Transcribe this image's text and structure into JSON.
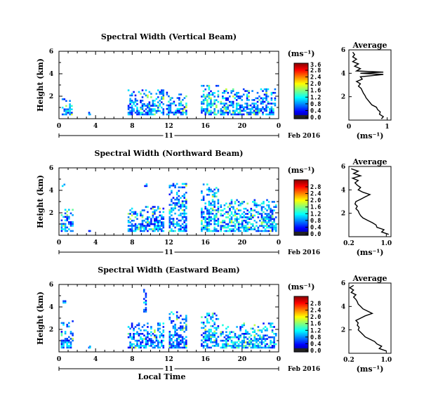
{
  "chart_data": [
    {
      "type": "heatmap",
      "title": "Spectral Width (Vertical Beam)",
      "ylabel": "Height (km)",
      "xlabel": "",
      "x_ticks": [
        "0",
        "4",
        "8",
        "12",
        "16",
        "20",
        "0"
      ],
      "y_ticks": [
        "2",
        "4",
        "6"
      ],
      "xlim": [
        0,
        24
      ],
      "ylim": [
        0,
        6
      ],
      "date_day": "11",
      "date_label": "Feb 2016",
      "colorbar": {
        "label": "(ms⁻¹)",
        "ticks": [
          "0.0",
          "0.4",
          "0.8",
          "1.2",
          "1.6",
          "2.0",
          "2.4",
          "2.8"
        ],
        "top_label": "3.6",
        "range": [
          0,
          3.6
        ]
      },
      "clusters": [
        {
          "t": [
            0.3,
            1.5
          ],
          "h": [
            0.3,
            1.8
          ],
          "level": 0.3
        },
        {
          "t": [
            3.2,
            3.4
          ],
          "h": [
            0.3,
            0.6
          ],
          "level": 0.3
        },
        {
          "t": [
            7.5,
            11.5
          ],
          "h": [
            0.3,
            2.6
          ],
          "level": 0.3
        },
        {
          "t": [
            11.7,
            14.0
          ],
          "h": [
            0.3,
            2.4
          ],
          "level": 0.3
        },
        {
          "t": [
            15.5,
            17.5
          ],
          "h": [
            0.3,
            3.0
          ],
          "level": 0.35
        },
        {
          "t": [
            17.6,
            23.7
          ],
          "h": [
            0.3,
            2.7
          ],
          "level": 0.3
        }
      ],
      "profile": {
        "title": "Average",
        "xlabel": "(ms⁻¹)",
        "x_ticks": [
          "0",
          "1"
        ],
        "xlim": [
          0,
          1.1
        ],
        "y_ticks": [
          "2",
          "4",
          "6"
        ],
        "ylim": [
          0,
          6
        ],
        "points": [
          [
            0.85,
            0.1
          ],
          [
            0.9,
            0.3
          ],
          [
            0.8,
            0.5
          ],
          [
            0.82,
            0.7
          ],
          [
            0.75,
            0.9
          ],
          [
            0.72,
            1.1
          ],
          [
            0.6,
            1.3
          ],
          [
            0.55,
            1.5
          ],
          [
            0.5,
            1.7
          ],
          [
            0.45,
            1.9
          ],
          [
            0.42,
            2.1
          ],
          [
            0.38,
            2.3
          ],
          [
            0.35,
            2.5
          ],
          [
            0.32,
            2.7
          ],
          [
            0.25,
            2.9
          ],
          [
            0.3,
            3.1
          ],
          [
            0.2,
            3.3
          ],
          [
            0.35,
            3.5
          ],
          [
            0.3,
            3.7
          ],
          [
            0.6,
            3.8
          ],
          [
            0.9,
            3.9
          ],
          [
            0.3,
            4.0
          ],
          [
            0.9,
            4.1
          ],
          [
            0.2,
            4.2
          ],
          [
            0.3,
            4.4
          ],
          [
            0.15,
            4.6
          ],
          [
            0.25,
            4.8
          ],
          [
            0.1,
            5.0
          ],
          [
            0.2,
            5.2
          ],
          [
            0.1,
            5.4
          ],
          [
            0.15,
            5.6
          ],
          [
            0.1,
            5.8
          ]
        ]
      }
    },
    {
      "type": "heatmap",
      "title": "Spectral Width (Northward Beam)",
      "ylabel": "Height (km)",
      "xlabel": "",
      "x_ticks": [
        "0",
        "4",
        "8",
        "12",
        "16",
        "20",
        "0"
      ],
      "y_ticks": [
        "2",
        "4",
        "6"
      ],
      "xlim": [
        0,
        24
      ],
      "ylim": [
        0,
        6
      ],
      "date_day": "11",
      "date_label": "Feb 2016",
      "colorbar": {
        "label": "(ms⁻¹)",
        "ticks": [
          "0.0",
          "0.4",
          "0.8",
          "1.2",
          "1.6",
          "2.0",
          "2.4",
          "2.8"
        ],
        "top_label": "",
        "range": [
          0,
          2.8
        ]
      },
      "clusters": [
        {
          "t": [
            0.2,
            1.6
          ],
          "h": [
            0.3,
            2.5
          ],
          "level": 0.3
        },
        {
          "t": [
            0.3,
            0.7
          ],
          "h": [
            4.3,
            4.7
          ],
          "level": 0.3
        },
        {
          "t": [
            3.2,
            3.4
          ],
          "h": [
            0.3,
            0.5
          ],
          "level": 0.3
        },
        {
          "t": [
            7.5,
            11.5
          ],
          "h": [
            0.3,
            2.6
          ],
          "level": 0.3
        },
        {
          "t": [
            9.3,
            10.0
          ],
          "h": [
            4.3,
            4.6
          ],
          "level": 0.3
        },
        {
          "t": [
            12.0,
            14.0
          ],
          "h": [
            0.3,
            4.8
          ],
          "level": 0.3
        },
        {
          "t": [
            15.5,
            17.5
          ],
          "h": [
            0.3,
            4.6
          ],
          "level": 0.35
        },
        {
          "t": [
            17.6,
            23.8
          ],
          "h": [
            0.3,
            3.2
          ],
          "level": 0.35
        }
      ],
      "profile": {
        "title": "Average",
        "xlabel": "(ms⁻¹)",
        "x_ticks": [
          "0.2",
          "1.0"
        ],
        "xlim": [
          0.2,
          1.1
        ],
        "y_ticks": [
          "2",
          "4",
          "6"
        ],
        "ylim": [
          0,
          6
        ],
        "points": [
          [
            1.05,
            0.2
          ],
          [
            0.9,
            0.4
          ],
          [
            0.95,
            0.6
          ],
          [
            0.8,
            0.8
          ],
          [
            0.78,
            1.0
          ],
          [
            0.7,
            1.2
          ],
          [
            0.6,
            1.4
          ],
          [
            0.5,
            1.6
          ],
          [
            0.45,
            1.8
          ],
          [
            0.42,
            2.0
          ],
          [
            0.4,
            2.2
          ],
          [
            0.35,
            2.4
          ],
          [
            0.38,
            2.6
          ],
          [
            0.33,
            2.8
          ],
          [
            0.35,
            3.0
          ],
          [
            0.45,
            3.2
          ],
          [
            0.55,
            3.4
          ],
          [
            0.65,
            3.6
          ],
          [
            0.5,
            3.8
          ],
          [
            0.4,
            4.0
          ],
          [
            0.45,
            4.2
          ],
          [
            0.38,
            4.4
          ],
          [
            0.33,
            4.6
          ],
          [
            0.4,
            4.8
          ],
          [
            0.28,
            5.0
          ],
          [
            0.45,
            5.2
          ],
          [
            0.3,
            5.4
          ],
          [
            0.4,
            5.6
          ],
          [
            0.25,
            5.8
          ]
        ]
      }
    },
    {
      "type": "heatmap",
      "title": "Spectral Width (Eastward Beam)",
      "ylabel": "Height (km)",
      "xlabel": "Local Time",
      "x_ticks": [
        "0",
        "4",
        "8",
        "12",
        "16",
        "20",
        "0"
      ],
      "y_ticks": [
        "2",
        "4",
        "6"
      ],
      "xlim": [
        0,
        24
      ],
      "ylim": [
        0,
        6
      ],
      "date_day": "11",
      "date_label": "Feb 2016",
      "colorbar": {
        "label": "(ms⁻¹)",
        "ticks": [
          "0.0",
          "0.4",
          "0.8",
          "1.2",
          "1.6",
          "2.0",
          "2.4",
          "2.8"
        ],
        "top_label": "",
        "range": [
          0,
          2.8
        ]
      },
      "clusters": [
        {
          "t": [
            0.2,
            1.6
          ],
          "h": [
            0.3,
            2.8
          ],
          "level": 0.3
        },
        {
          "t": [
            0.4,
            0.8
          ],
          "h": [
            4.3,
            4.7
          ],
          "level": 0.3
        },
        {
          "t": [
            3.2,
            3.4
          ],
          "h": [
            0.3,
            0.5
          ],
          "level": 0.3
        },
        {
          "t": [
            7.5,
            11.5
          ],
          "h": [
            0.3,
            2.6
          ],
          "level": 0.3
        },
        {
          "t": [
            9.2,
            9.6
          ],
          "h": [
            3.5,
            5.6
          ],
          "level": 0.3
        },
        {
          "t": [
            12.0,
            14.0
          ],
          "h": [
            0.3,
            3.6
          ],
          "level": 0.3
        },
        {
          "t": [
            15.5,
            17.5
          ],
          "h": [
            0.3,
            3.8
          ],
          "level": 0.35
        },
        {
          "t": [
            17.6,
            23.8
          ],
          "h": [
            0.3,
            2.6
          ],
          "level": 0.35
        }
      ],
      "profile": {
        "title": "Average",
        "xlabel": "(ms⁻¹)",
        "x_ticks": [
          "0.2",
          "1.0"
        ],
        "xlim": [
          0.2,
          1.1
        ],
        "y_ticks": [
          "2",
          "4",
          "6"
        ],
        "ylim": [
          0,
          6
        ],
        "points": [
          [
            1.0,
            0.2
          ],
          [
            0.85,
            0.4
          ],
          [
            0.9,
            0.6
          ],
          [
            0.8,
            0.8
          ],
          [
            0.75,
            1.0
          ],
          [
            0.65,
            1.2
          ],
          [
            0.55,
            1.4
          ],
          [
            0.5,
            1.6
          ],
          [
            0.45,
            1.8
          ],
          [
            0.4,
            2.0
          ],
          [
            0.42,
            2.2
          ],
          [
            0.38,
            2.4
          ],
          [
            0.4,
            2.6
          ],
          [
            0.35,
            2.8
          ],
          [
            0.45,
            3.0
          ],
          [
            0.55,
            3.2
          ],
          [
            0.7,
            3.4
          ],
          [
            0.6,
            3.6
          ],
          [
            0.5,
            3.8
          ],
          [
            0.45,
            4.0
          ],
          [
            0.4,
            4.2
          ],
          [
            0.38,
            4.4
          ],
          [
            0.35,
            4.6
          ],
          [
            0.3,
            4.8
          ],
          [
            0.35,
            5.0
          ],
          [
            0.25,
            5.2
          ],
          [
            0.3,
            5.4
          ],
          [
            0.22,
            5.6
          ],
          [
            0.3,
            5.8
          ]
        ]
      }
    }
  ]
}
